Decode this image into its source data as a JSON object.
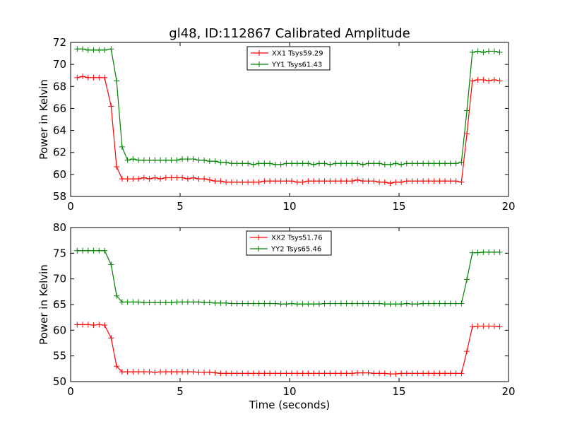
{
  "title": "gl48, ID:112867 Calibrated Amplitude",
  "chart_data": [
    {
      "type": "line",
      "ylabel": "Power in Kelvin",
      "xlabel": "",
      "xlim": [
        0,
        20
      ],
      "ylim": [
        58,
        72
      ],
      "xticks": [
        0,
        5,
        10,
        15,
        20
      ],
      "yticks": [
        58,
        60,
        62,
        64,
        66,
        68,
        70,
        72
      ],
      "legend_position": "top-center",
      "x": [
        0.3,
        0.55,
        0.8,
        1.05,
        1.3,
        1.55,
        1.85,
        2.1,
        2.35,
        2.6,
        2.85,
        3.1,
        3.35,
        3.6,
        3.85,
        4.1,
        4.35,
        4.6,
        4.85,
        5.1,
        5.35,
        5.6,
        5.85,
        6.1,
        6.35,
        6.6,
        6.85,
        7.1,
        7.35,
        7.6,
        7.85,
        8.1,
        8.35,
        8.6,
        8.85,
        9.1,
        9.35,
        9.6,
        9.85,
        10.1,
        10.35,
        10.6,
        10.85,
        11.1,
        11.35,
        11.6,
        11.85,
        12.1,
        12.35,
        12.6,
        12.85,
        13.1,
        13.35,
        13.6,
        13.85,
        14.1,
        14.35,
        14.6,
        14.85,
        15.1,
        15.35,
        15.6,
        15.85,
        16.1,
        16.35,
        16.6,
        16.85,
        17.1,
        17.35,
        17.6,
        17.85,
        18.1,
        18.35,
        18.6,
        18.85,
        19.1,
        19.35,
        19.6
      ],
      "series": [
        {
          "name": "XX1 Tsys59.29",
          "color": "#ff0000",
          "values": [
            68.8,
            68.9,
            68.8,
            68.8,
            68.8,
            68.8,
            66.2,
            60.7,
            59.6,
            59.6,
            59.6,
            59.6,
            59.7,
            59.6,
            59.7,
            59.6,
            59.7,
            59.7,
            59.7,
            59.7,
            59.6,
            59.7,
            59.6,
            59.6,
            59.5,
            59.4,
            59.4,
            59.3,
            59.3,
            59.3,
            59.3,
            59.3,
            59.3,
            59.3,
            59.4,
            59.4,
            59.4,
            59.4,
            59.4,
            59.4,
            59.3,
            59.3,
            59.4,
            59.4,
            59.4,
            59.4,
            59.4,
            59.4,
            59.4,
            59.4,
            59.4,
            59.5,
            59.4,
            59.4,
            59.4,
            59.3,
            59.3,
            59.2,
            59.3,
            59.3,
            59.4,
            59.4,
            59.4,
            59.4,
            59.4,
            59.4,
            59.4,
            59.4,
            59.4,
            59.4,
            59.3,
            63.7,
            68.5,
            68.6,
            68.6,
            68.5,
            68.6,
            68.5
          ]
        },
        {
          "name": "YY1 Tsys61.43",
          "color": "#008000",
          "values": [
            71.4,
            71.4,
            71.3,
            71.3,
            71.3,
            71.3,
            71.4,
            68.5,
            62.5,
            61.3,
            61.4,
            61.3,
            61.3,
            61.3,
            61.3,
            61.3,
            61.3,
            61.3,
            61.3,
            61.4,
            61.4,
            61.4,
            61.3,
            61.3,
            61.2,
            61.2,
            61.1,
            61.1,
            61.0,
            61.0,
            61.0,
            61.0,
            60.9,
            61.0,
            61.0,
            61.0,
            60.9,
            60.9,
            61.0,
            61.0,
            61.0,
            61.0,
            61.0,
            60.9,
            61.0,
            61.0,
            60.9,
            61.0,
            61.0,
            61.0,
            61.0,
            61.0,
            60.9,
            61.0,
            61.0,
            61.0,
            60.9,
            60.9,
            61.0,
            60.9,
            61.0,
            61.0,
            61.0,
            61.0,
            61.0,
            61.0,
            61.0,
            61.0,
            61.0,
            61.0,
            61.1,
            65.8,
            71.1,
            71.2,
            71.1,
            71.2,
            71.2,
            71.1
          ]
        }
      ]
    },
    {
      "type": "line",
      "ylabel": "Power in Kelvin",
      "xlabel": "Time (seconds)",
      "xlim": [
        0,
        20
      ],
      "ylim": [
        50,
        80
      ],
      "xticks": [
        0,
        5,
        10,
        15,
        20
      ],
      "yticks": [
        50,
        55,
        60,
        65,
        70,
        75,
        80
      ],
      "legend_position": "top-center",
      "x": [
        0.3,
        0.55,
        0.8,
        1.05,
        1.3,
        1.55,
        1.85,
        2.1,
        2.35,
        2.6,
        2.85,
        3.1,
        3.35,
        3.6,
        3.85,
        4.1,
        4.35,
        4.6,
        4.85,
        5.1,
        5.35,
        5.6,
        5.85,
        6.1,
        6.35,
        6.6,
        6.85,
        7.1,
        7.35,
        7.6,
        7.85,
        8.1,
        8.35,
        8.6,
        8.85,
        9.1,
        9.35,
        9.6,
        9.85,
        10.1,
        10.35,
        10.6,
        10.85,
        11.1,
        11.35,
        11.6,
        11.85,
        12.1,
        12.35,
        12.6,
        12.85,
        13.1,
        13.35,
        13.6,
        13.85,
        14.1,
        14.35,
        14.6,
        14.85,
        15.1,
        15.35,
        15.6,
        15.85,
        16.1,
        16.35,
        16.6,
        16.85,
        17.1,
        17.35,
        17.6,
        17.85,
        18.1,
        18.35,
        18.6,
        18.85,
        19.1,
        19.35,
        19.6
      ],
      "series": [
        {
          "name": "XX2 Tsys51.76",
          "color": "#ff0000",
          "values": [
            61.1,
            61.1,
            61.1,
            61.0,
            61.1,
            61.0,
            58.5,
            53.0,
            51.9,
            51.9,
            51.9,
            51.9,
            51.9,
            51.9,
            51.8,
            51.9,
            51.9,
            51.9,
            51.9,
            51.9,
            51.9,
            51.9,
            51.8,
            51.8,
            51.8,
            51.7,
            51.6,
            51.6,
            51.6,
            51.6,
            51.6,
            51.6,
            51.6,
            51.6,
            51.6,
            51.6,
            51.6,
            51.6,
            51.6,
            51.6,
            51.6,
            51.6,
            51.6,
            51.6,
            51.6,
            51.6,
            51.6,
            51.6,
            51.6,
            51.6,
            51.6,
            51.7,
            51.7,
            51.7,
            51.6,
            51.6,
            51.6,
            51.5,
            51.5,
            51.6,
            51.6,
            51.6,
            51.6,
            51.6,
            51.6,
            51.6,
            51.6,
            51.6,
            51.6,
            51.6,
            51.6,
            55.9,
            60.7,
            60.8,
            60.8,
            60.8,
            60.8,
            60.7
          ]
        },
        {
          "name": "YY2 Tsys65.46",
          "color": "#008000",
          "values": [
            75.5,
            75.5,
            75.5,
            75.5,
            75.5,
            75.5,
            72.8,
            66.7,
            65.5,
            65.5,
            65.5,
            65.5,
            65.4,
            65.4,
            65.4,
            65.4,
            65.4,
            65.4,
            65.5,
            65.5,
            65.5,
            65.5,
            65.5,
            65.4,
            65.4,
            65.3,
            65.3,
            65.3,
            65.2,
            65.2,
            65.2,
            65.2,
            65.2,
            65.2,
            65.2,
            65.2,
            65.2,
            65.1,
            65.1,
            65.2,
            65.1,
            65.1,
            65.1,
            65.1,
            65.1,
            65.2,
            65.2,
            65.2,
            65.2,
            65.2,
            65.2,
            65.2,
            65.2,
            65.2,
            65.2,
            65.2,
            65.1,
            65.1,
            65.1,
            65.1,
            65.2,
            65.1,
            65.1,
            65.2,
            65.2,
            65.2,
            65.2,
            65.2,
            65.2,
            65.2,
            65.2,
            69.9,
            75.1,
            75.1,
            75.2,
            75.2,
            75.2,
            75.2
          ]
        }
      ]
    }
  ]
}
